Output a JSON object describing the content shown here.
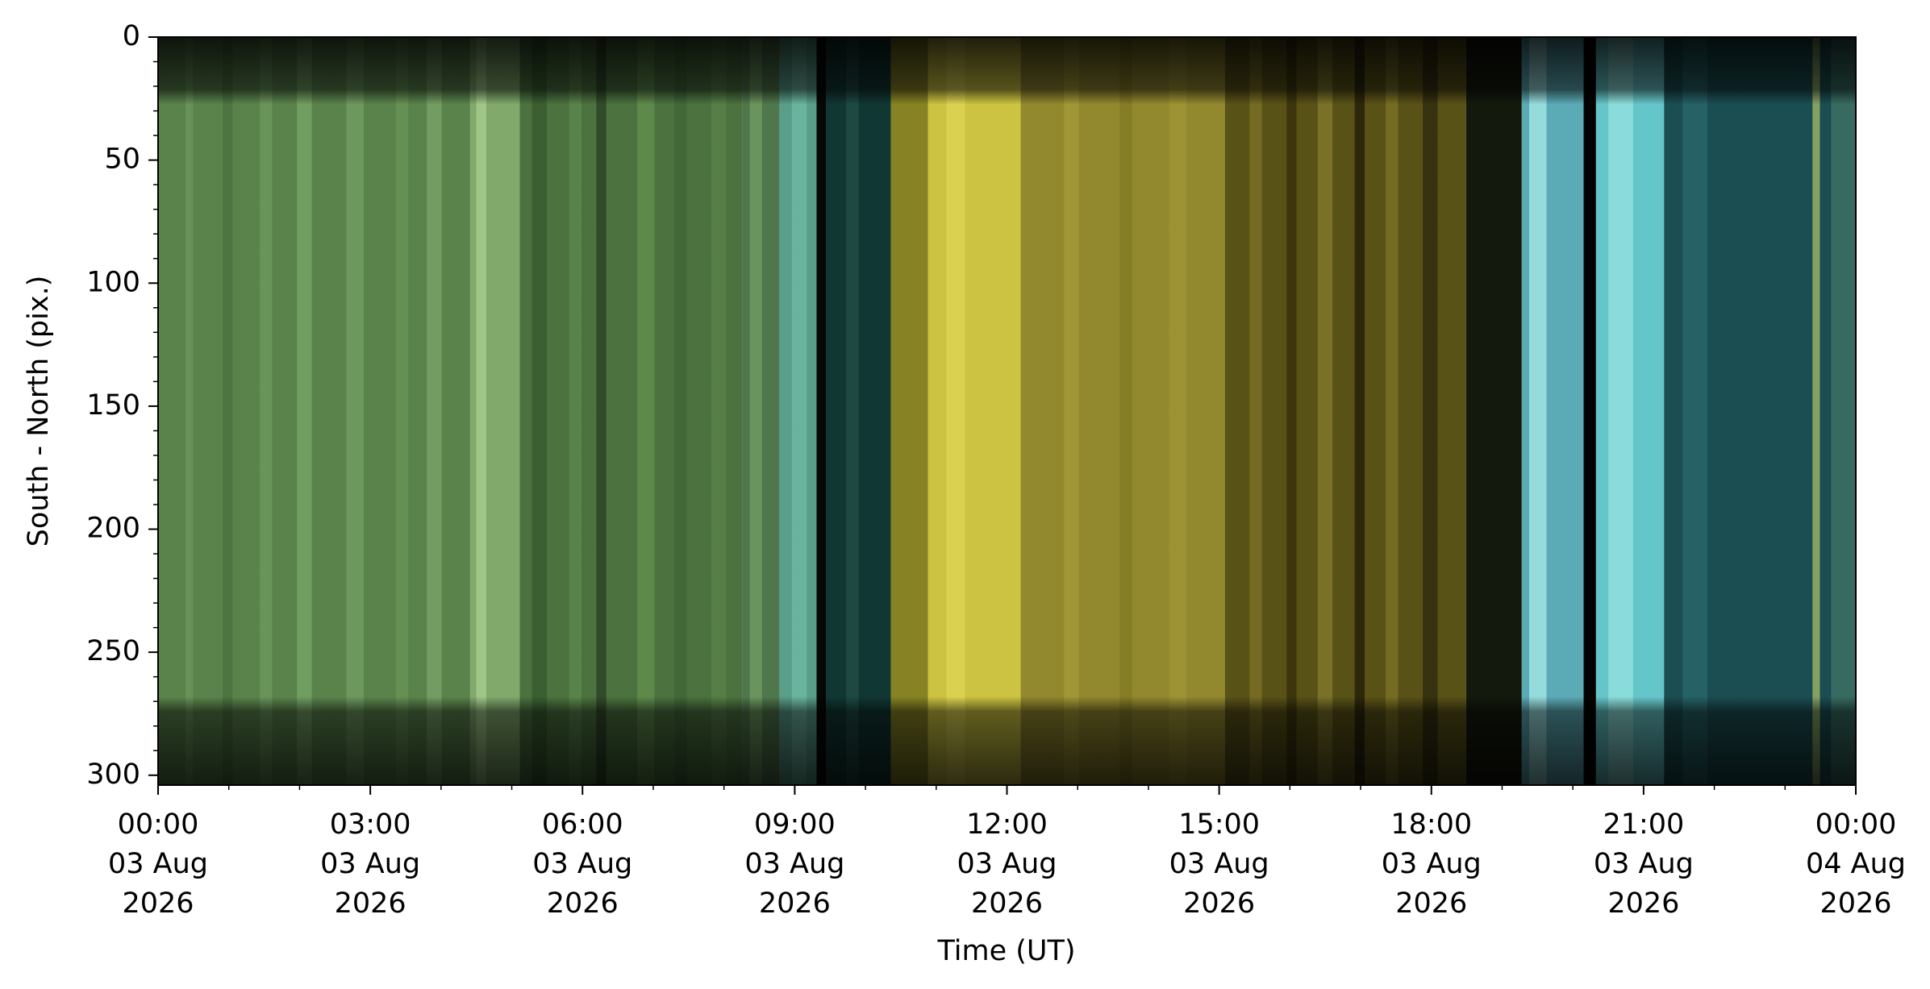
{
  "chart_data": {
    "type": "image",
    "xlabel": "Time (UT)",
    "ylabel": "South - North (pix.)",
    "xlim": [
      0,
      24
    ],
    "xticks": [
      {
        "value": 0,
        "label": "00:00\n03 Aug\n2026"
      },
      {
        "value": 3,
        "label": "03:00\n03 Aug\n2026"
      },
      {
        "value": 6,
        "label": "06:00\n03 Aug\n2026"
      },
      {
        "value": 9,
        "label": "09:00\n03 Aug\n2026"
      },
      {
        "value": 12,
        "label": "12:00\n03 Aug\n2026"
      },
      {
        "value": 15,
        "label": "15:00\n03 Aug\n2026"
      },
      {
        "value": 18,
        "label": "18:00\n03 Aug\n2026"
      },
      {
        "value": 21,
        "label": "21:00\n03 Aug\n2026"
      },
      {
        "value": 24,
        "label": "00:00\n04 Aug\n2026"
      }
    ],
    "ylim": [
      0,
      304
    ],
    "y_inverted": true,
    "yticks": [
      0,
      50,
      100,
      150,
      200,
      250,
      300
    ]
  }
}
